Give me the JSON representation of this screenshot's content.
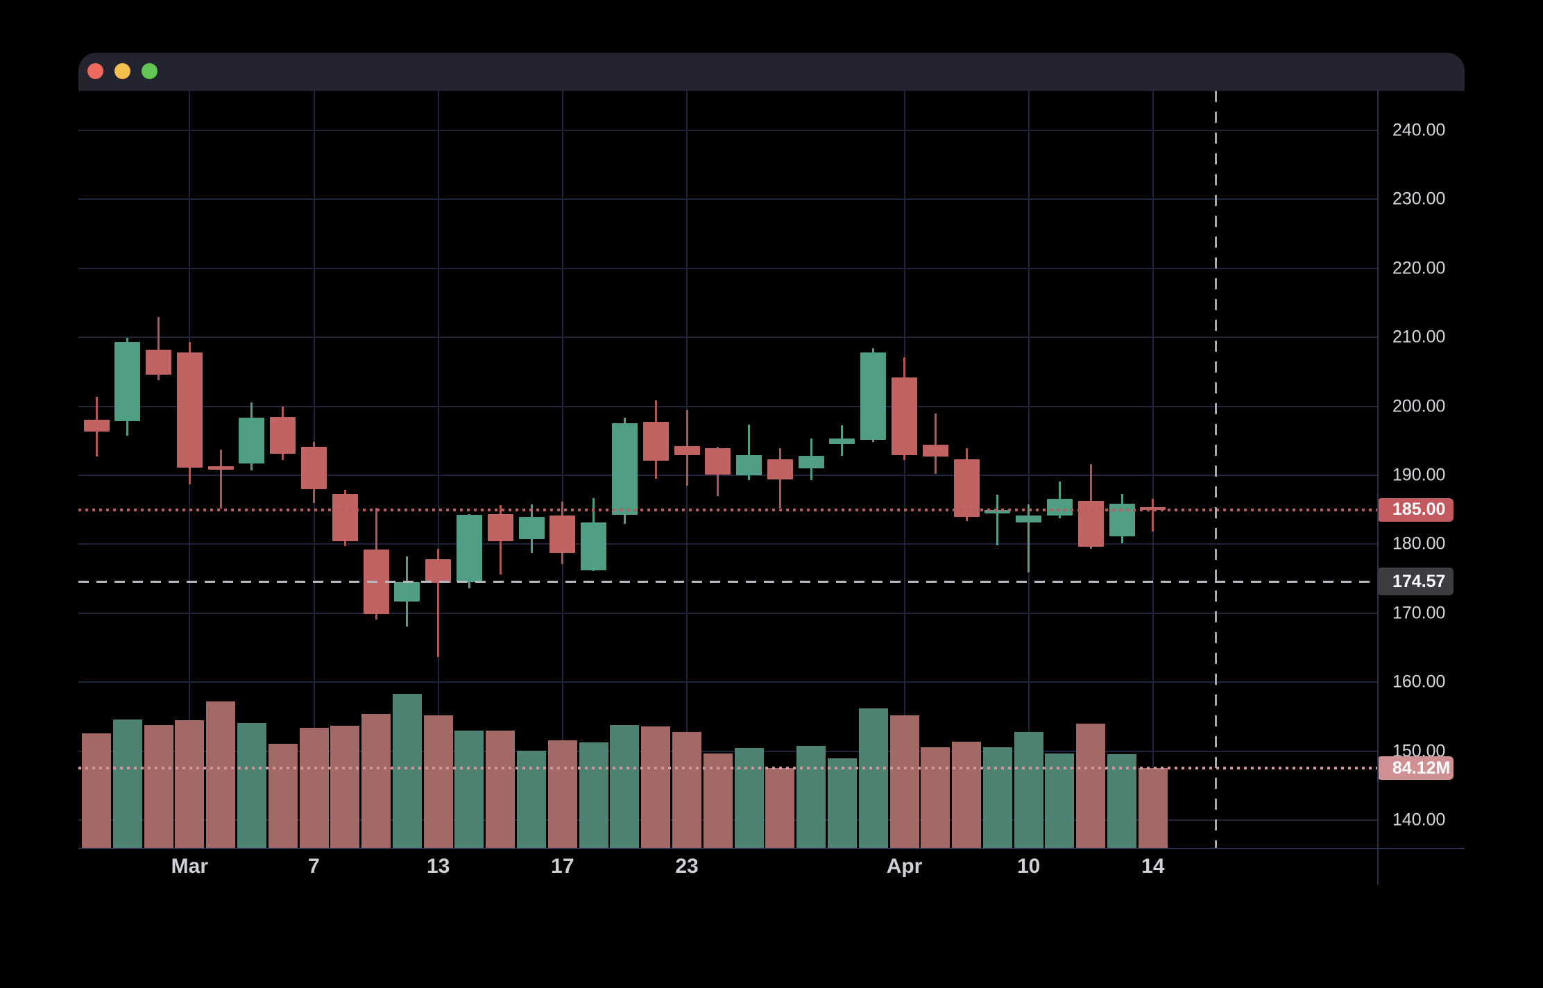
{
  "window": {
    "traffic_lights": [
      {
        "name": "close",
        "color": "#ee6a5f"
      },
      {
        "name": "minimize",
        "color": "#f5bf4f"
      },
      {
        "name": "zoom",
        "color": "#62c554"
      }
    ]
  },
  "colors": {
    "up": "#4f9e85",
    "down": "#c16363",
    "wick_up": "#4f9e85",
    "wick_down": "#ad5756",
    "vol_up": "#4e8272",
    "vol_down": "#a26967",
    "last_price_line": "#bf5a5e",
    "crosshair_line": "#b6b9c0",
    "volume_line": "#d2979a"
  },
  "chart": {
    "price_axis": {
      "last_price_badge": {
        "label": "185.00",
        "value": 185.0,
        "color": "#c25a60"
      },
      "crosshair_price_badge": {
        "label": "174.57",
        "value": 174.57,
        "color": "#3c3c41"
      },
      "volume_badge": {
        "label": "84.12M",
        "color": "#cf9093"
      }
    },
    "crosshair": {
      "x_bar_index": 36.03,
      "price": 174.57
    }
  },
  "chart_data": {
    "type": "candlestick",
    "title": "",
    "grid": true,
    "legend_position": "none",
    "ylim": [
      136.0,
      245.7
    ],
    "price_ticks": [
      {
        "label": "240.00",
        "value": 240
      },
      {
        "label": "230.00",
        "value": 230
      },
      {
        "label": "220.00",
        "value": 220
      },
      {
        "label": "210.00",
        "value": 210
      },
      {
        "label": "200.00",
        "value": 200
      },
      {
        "label": "190.00",
        "value": 190
      },
      {
        "label": "180.00",
        "value": 180
      },
      {
        "label": "170.00",
        "value": 170
      },
      {
        "label": "160.00",
        "value": 160
      },
      {
        "label": "150.00",
        "value": 150
      },
      {
        "label": "140.00",
        "value": 140
      }
    ],
    "x_labels": [
      {
        "bar_index": 3,
        "label": "Mar"
      },
      {
        "bar_index": 7,
        "label": "7"
      },
      {
        "bar_index": 11,
        "label": "13"
      },
      {
        "bar_index": 15,
        "label": "17"
      },
      {
        "bar_index": 19,
        "label": "23"
      },
      {
        "bar_index": 26,
        "label": "Apr"
      },
      {
        "bar_index": 30,
        "label": "10"
      },
      {
        "bar_index": 34,
        "label": "14"
      }
    ],
    "last_price": 185.0,
    "crosshair_price": 174.57,
    "volume_unit": "M",
    "volume_at_dotted_line": 84.12,
    "candles": [
      {
        "o": 198.0,
        "h": 201.4,
        "l": 192.7,
        "c": 196.3,
        "v": 120.6
      },
      {
        "o": 197.8,
        "h": 209.9,
        "l": 195.7,
        "c": 209.3,
        "v": 135.5
      },
      {
        "o": 208.2,
        "h": 212.9,
        "l": 203.8,
        "c": 204.6,
        "v": 129.5
      },
      {
        "o": 207.8,
        "h": 209.3,
        "l": 188.7,
        "c": 191.1,
        "v": 134.7
      },
      {
        "o": 191.3,
        "h": 193.7,
        "l": 185.2,
        "c": 190.8,
        "v": 154.1
      },
      {
        "o": 191.7,
        "h": 200.6,
        "l": 190.7,
        "c": 198.3,
        "v": 131.8
      },
      {
        "o": 198.4,
        "h": 199.9,
        "l": 192.2,
        "c": 193.1,
        "v": 109.4
      },
      {
        "o": 194.1,
        "h": 194.8,
        "l": 186.0,
        "c": 188.0,
        "v": 126.6
      },
      {
        "o": 187.3,
        "h": 187.9,
        "l": 179.7,
        "c": 180.4,
        "v": 128.8
      },
      {
        "o": 179.2,
        "h": 185.3,
        "l": 169.1,
        "c": 169.9,
        "v": 141.4
      },
      {
        "o": 171.7,
        "h": 178.2,
        "l": 168.1,
        "c": 174.5,
        "v": 162.3
      },
      {
        "o": 177.8,
        "h": 179.3,
        "l": 163.7,
        "c": 174.4,
        "v": 140.0
      },
      {
        "o": 174.5,
        "h": 184.4,
        "l": 173.6,
        "c": 184.3,
        "v": 123.6
      },
      {
        "o": 184.4,
        "h": 185.7,
        "l": 175.6,
        "c": 180.4,
        "v": 123.6
      },
      {
        "o": 180.7,
        "h": 185.8,
        "l": 178.7,
        "c": 184.0,
        "v": 102.7
      },
      {
        "o": 184.2,
        "h": 186.2,
        "l": 177.1,
        "c": 178.7,
        "v": 113.2
      },
      {
        "o": 176.2,
        "h": 186.7,
        "l": 176.1,
        "c": 183.2,
        "v": 110.9
      },
      {
        "o": 184.3,
        "h": 198.3,
        "l": 183.0,
        "c": 197.5,
        "v": 129.5
      },
      {
        "o": 197.7,
        "h": 200.9,
        "l": 189.5,
        "c": 192.1,
        "v": 128.1
      },
      {
        "o": 194.2,
        "h": 199.4,
        "l": 188.5,
        "c": 192.9,
        "v": 122.1
      },
      {
        "o": 193.9,
        "h": 194.1,
        "l": 187.0,
        "c": 190.1,
        "v": 99.8
      },
      {
        "o": 190.0,
        "h": 197.3,
        "l": 189.3,
        "c": 192.9,
        "v": 105.0
      },
      {
        "o": 192.3,
        "h": 193.9,
        "l": 185.3,
        "c": 189.4,
        "v": 84.1
      },
      {
        "o": 191.0,
        "h": 195.3,
        "l": 189.3,
        "c": 192.8,
        "v": 107.2
      },
      {
        "o": 194.5,
        "h": 197.2,
        "l": 192.8,
        "c": 195.3,
        "v": 94.6
      },
      {
        "o": 195.1,
        "h": 208.4,
        "l": 194.8,
        "c": 207.8,
        "v": 146.7
      },
      {
        "o": 204.2,
        "h": 207.1,
        "l": 192.2,
        "c": 192.9,
        "v": 140.0
      },
      {
        "o": 194.4,
        "h": 198.9,
        "l": 190.2,
        "c": 192.7,
        "v": 105.7
      },
      {
        "o": 192.3,
        "h": 193.9,
        "l": 183.4,
        "c": 184.0,
        "v": 111.7
      },
      {
        "o": 184.5,
        "h": 187.2,
        "l": 179.8,
        "c": 185.0,
        "v": 105.7
      },
      {
        "o": 183.2,
        "h": 185.8,
        "l": 175.9,
        "c": 184.2,
        "v": 122.1
      },
      {
        "o": 184.2,
        "h": 189.1,
        "l": 183.8,
        "c": 186.6,
        "v": 99.8
      },
      {
        "o": 186.3,
        "h": 191.6,
        "l": 179.3,
        "c": 179.6,
        "v": 131.0
      },
      {
        "o": 181.1,
        "h": 187.3,
        "l": 180.1,
        "c": 185.9,
        "v": 99.0
      },
      {
        "o": 185.4,
        "h": 186.6,
        "l": 181.9,
        "c": 185.0,
        "v": 84.12
      }
    ]
  }
}
